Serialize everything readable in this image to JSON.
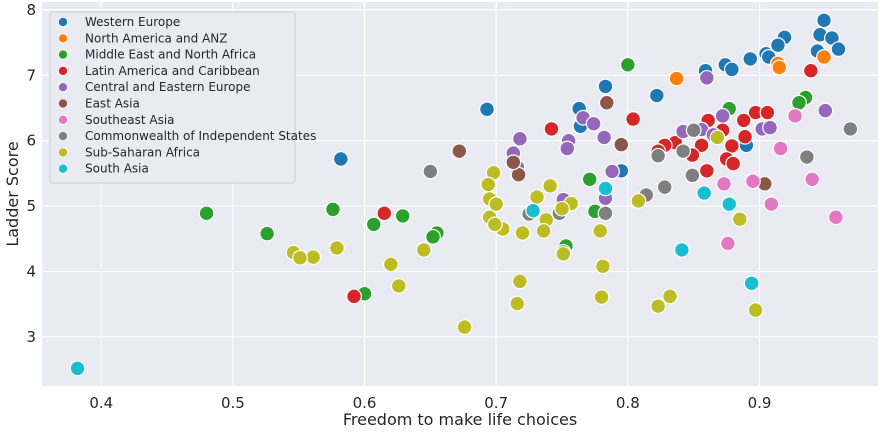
{
  "chart_data": {
    "type": "scatter",
    "title": "",
    "xlabel": "Freedom to make life choices",
    "ylabel": "Ladder Score",
    "xlim": [
      0.355,
      0.99
    ],
    "ylim": [
      2.25,
      8.12
    ],
    "xticks": [
      "0.4",
      "0.5",
      "0.6",
      "0.7",
      "0.8",
      "0.9"
    ],
    "xtick_values": [
      0.4,
      0.5,
      0.6,
      0.7,
      0.8,
      0.9
    ],
    "yticks": [
      "3",
      "4",
      "5",
      "6",
      "7",
      "8"
    ],
    "ytick_values": [
      3,
      4,
      5,
      6,
      7,
      8
    ],
    "grid": true,
    "legend_position": "top-left",
    "series": [
      {
        "name": "Western Europe",
        "color": "#1f77b4",
        "points": [
          [
            0.949,
            7.84
          ],
          [
            0.946,
            7.62
          ],
          [
            0.955,
            7.57
          ],
          [
            0.919,
            7.58
          ],
          [
            0.914,
            7.46
          ],
          [
            0.96,
            7.4
          ],
          [
            0.944,
            7.37
          ],
          [
            0.905,
            7.33
          ],
          [
            0.907,
            7.28
          ],
          [
            0.893,
            7.25
          ],
          [
            0.874,
            7.16
          ],
          [
            0.879,
            7.09
          ],
          [
            0.859,
            7.07
          ],
          [
            0.783,
            6.83
          ],
          [
            0.763,
            6.49
          ],
          [
            0.693,
            6.48
          ],
          [
            0.822,
            6.69
          ],
          [
            0.764,
            6.22
          ],
          [
            0.795,
            5.54
          ],
          [
            0.582,
            5.72
          ],
          [
            0.89,
            5.93
          ]
        ]
      },
      {
        "name": "North America and ANZ",
        "color": "#ff7f0e",
        "points": [
          [
            0.914,
            7.18
          ],
          [
            0.949,
            7.28
          ],
          [
            0.915,
            7.12
          ],
          [
            0.837,
            6.95
          ]
        ]
      },
      {
        "name": "Middle East and North Africa",
        "color": "#2ca02c",
        "points": [
          [
            0.8,
            7.16
          ],
          [
            0.935,
            6.66
          ],
          [
            0.93,
            6.58
          ],
          [
            0.877,
            6.49
          ],
          [
            0.866,
            6.1
          ],
          [
            0.771,
            5.41
          ],
          [
            0.775,
            4.92
          ],
          [
            0.629,
            4.85
          ],
          [
            0.576,
            4.95
          ],
          [
            0.607,
            4.72
          ],
          [
            0.655,
            4.59
          ],
          [
            0.652,
            4.53
          ],
          [
            0.526,
            4.58
          ],
          [
            0.48,
            4.89
          ],
          [
            0.753,
            4.39
          ],
          [
            0.751,
            4.3
          ],
          [
            0.6,
            3.66
          ]
        ]
      },
      {
        "name": "Latin America and Caribbean",
        "color": "#d62728",
        "points": [
          [
            0.939,
            7.07
          ],
          [
            0.742,
            6.18
          ],
          [
            0.804,
            6.33
          ],
          [
            0.897,
            6.43
          ],
          [
            0.888,
            6.31
          ],
          [
            0.872,
            6.16
          ],
          [
            0.861,
            6.31
          ],
          [
            0.906,
            6.43
          ],
          [
            0.836,
            5.97
          ],
          [
            0.828,
            5.93
          ],
          [
            0.856,
            5.93
          ],
          [
            0.823,
            5.84
          ],
          [
            0.879,
            5.92
          ],
          [
            0.875,
            5.72
          ],
          [
            0.88,
            5.65
          ],
          [
            0.889,
            6.06
          ],
          [
            0.849,
            5.78
          ],
          [
            0.86,
            5.54
          ],
          [
            0.615,
            4.89
          ],
          [
            0.592,
            3.62
          ]
        ]
      },
      {
        "name": "Central and Eastern Europe",
        "color": "#9467bd",
        "points": [
          [
            0.86,
            6.96
          ],
          [
            0.95,
            6.46
          ],
          [
            0.766,
            6.35
          ],
          [
            0.774,
            6.26
          ],
          [
            0.856,
            6.17
          ],
          [
            0.902,
            6.18
          ],
          [
            0.865,
            6.09
          ],
          [
            0.718,
            6.03
          ],
          [
            0.755,
            6.0
          ],
          [
            0.754,
            5.88
          ],
          [
            0.713,
            5.81
          ],
          [
            0.782,
            6.05
          ],
          [
            0.716,
            5.6
          ],
          [
            0.788,
            5.53
          ],
          [
            0.751,
            5.1
          ],
          [
            0.783,
            5.12
          ],
          [
            0.908,
            6.2
          ],
          [
            0.872,
            6.38
          ],
          [
            0.842,
            6.14
          ]
        ]
      },
      {
        "name": "East Asia",
        "color": "#8c564b",
        "points": [
          [
            0.784,
            6.58
          ],
          [
            0.795,
            5.94
          ],
          [
            0.904,
            5.34
          ],
          [
            0.672,
            5.84
          ],
          [
            0.717,
            5.48
          ],
          [
            0.713,
            5.67
          ]
        ]
      },
      {
        "name": "Southeast Asia",
        "color": "#e377c2",
        "points": [
          [
            0.927,
            6.38
          ],
          [
            0.916,
            5.88
          ],
          [
            0.94,
            5.41
          ],
          [
            0.895,
            5.38
          ],
          [
            0.873,
            5.34
          ],
          [
            0.909,
            5.03
          ],
          [
            0.958,
            4.83
          ],
          [
            0.876,
            4.43
          ]
        ]
      },
      {
        "name": "Commonwealth of Independent States",
        "color": "#7f7f7f",
        "points": [
          [
            0.969,
            6.18
          ],
          [
            0.936,
            5.75
          ],
          [
            0.842,
            5.84
          ],
          [
            0.823,
            5.77
          ],
          [
            0.828,
            5.29
          ],
          [
            0.849,
            5.47
          ],
          [
            0.814,
            5.17
          ],
          [
            0.65,
            5.53
          ],
          [
            0.783,
            4.89
          ],
          [
            0.748,
            4.89
          ],
          [
            0.725,
            4.88
          ],
          [
            0.85,
            6.16
          ]
        ]
      },
      {
        "name": "Sub-Saharan Africa",
        "color": "#bcbd22",
        "points": [
          [
            0.868,
            6.05
          ],
          [
            0.698,
            5.51
          ],
          [
            0.741,
            5.31
          ],
          [
            0.694,
            5.33
          ],
          [
            0.695,
            5.11
          ],
          [
            0.7,
            5.03
          ],
          [
            0.731,
            5.14
          ],
          [
            0.757,
            5.04
          ],
          [
            0.75,
            4.96
          ],
          [
            0.808,
            5.08
          ],
          [
            0.695,
            4.83
          ],
          [
            0.738,
            4.79
          ],
          [
            0.705,
            4.65
          ],
          [
            0.699,
            4.72
          ],
          [
            0.72,
            4.59
          ],
          [
            0.736,
            4.62
          ],
          [
            0.885,
            4.8
          ],
          [
            0.779,
            4.62
          ],
          [
            0.751,
            4.27
          ],
          [
            0.579,
            4.36
          ],
          [
            0.546,
            4.29
          ],
          [
            0.561,
            4.22
          ],
          [
            0.551,
            4.21
          ],
          [
            0.62,
            4.11
          ],
          [
            0.645,
            4.33
          ],
          [
            0.781,
            4.08
          ],
          [
            0.718,
            3.85
          ],
          [
            0.626,
            3.78
          ],
          [
            0.78,
            3.61
          ],
          [
            0.832,
            3.62
          ],
          [
            0.823,
            3.47
          ],
          [
            0.716,
            3.51
          ],
          [
            0.897,
            3.41
          ],
          [
            0.676,
            3.15
          ]
        ]
      },
      {
        "name": "South Asia",
        "color": "#17becf",
        "points": [
          [
            0.382,
            2.52
          ],
          [
            0.783,
            5.27
          ],
          [
            0.858,
            5.2
          ],
          [
            0.877,
            5.03
          ],
          [
            0.894,
            3.82
          ],
          [
            0.841,
            4.33
          ],
          [
            0.728,
            4.93
          ]
        ]
      }
    ]
  }
}
